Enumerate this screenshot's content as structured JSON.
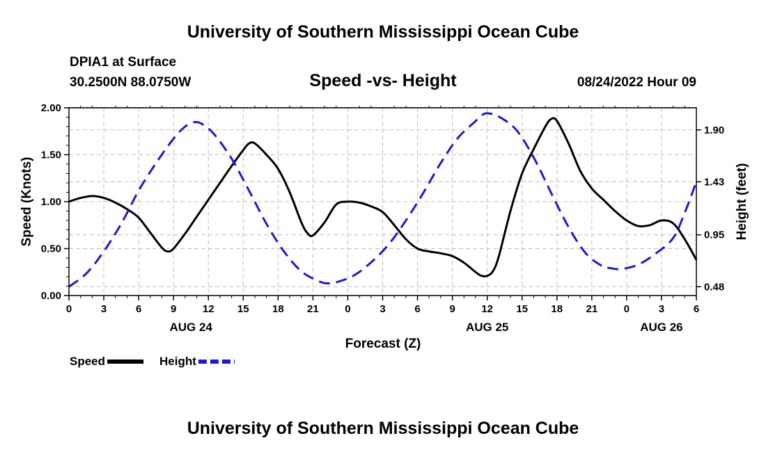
{
  "header": {
    "title": "University of Southern Mississippi Ocean Cube",
    "station": "DPIA1 at Surface",
    "coords": "30.2500N  88.0750W",
    "subtitle": "Speed -vs- Height",
    "timestamp": "08/24/2022 Hour 09"
  },
  "footer": {
    "title": "University of Southern Mississippi Ocean Cube"
  },
  "chart_data": {
    "type": "line",
    "title": "Speed -vs- Height",
    "xlabel": "Forecast (Z)",
    "ylabel_left": "Speed (Knots)",
    "ylabel_right": "Height (feet)",
    "x_range": [
      0,
      54
    ],
    "y_left_range": [
      0,
      2.0
    ],
    "y_right_range": [
      0.4,
      2.1
    ],
    "x_tick_values": [
      0,
      3,
      6,
      9,
      12,
      15,
      18,
      21,
      24,
      27,
      30,
      33,
      36,
      39,
      42,
      45,
      48,
      51,
      54
    ],
    "x_tick_labels": [
      "0",
      "3",
      "6",
      "9",
      "12",
      "15",
      "18",
      "21",
      "0",
      "3",
      "6",
      "9",
      "12",
      "15",
      "18",
      "21",
      "0",
      "3",
      "6"
    ],
    "date_labels": [
      {
        "label": "AUG 24",
        "x": 10.5
      },
      {
        "label": "AUG 25",
        "x": 36
      },
      {
        "label": "AUG 26",
        "x": 51
      }
    ],
    "y_left_ticks": [
      0.0,
      0.5,
      1.0,
      1.5,
      2.0
    ],
    "y_left_tick_labels": [
      "0.00",
      "0.50",
      "1.00",
      "1.50",
      "2.00"
    ],
    "y_right_ticks": [
      0.48,
      0.95,
      1.43,
      1.9
    ],
    "y_right_tick_labels": [
      "0.48",
      "0.95",
      "1.43",
      "1.90"
    ],
    "grid": true,
    "legend": [
      {
        "name": "Speed",
        "color": "#000000",
        "dashed": false
      },
      {
        "name": "Height",
        "color": "#1a1ad0",
        "dashed": true
      }
    ],
    "series": [
      {
        "name": "Speed",
        "axis": "left",
        "color": "#000000",
        "x": [
          0,
          1,
          2,
          3,
          4,
          5,
          6,
          7,
          8,
          8.5,
          9,
          10,
          11,
          12,
          13,
          14,
          15,
          15.5,
          16,
          17,
          18,
          19,
          20,
          20.5,
          21,
          22,
          23,
          24,
          25,
          26,
          27,
          28,
          29,
          30,
          31,
          32,
          33,
          34,
          35,
          35.5,
          36,
          36.5,
          37,
          38,
          39,
          40,
          41,
          41.5,
          42,
          43,
          44,
          45,
          46,
          47,
          48,
          49,
          50,
          51,
          52,
          53,
          54
        ],
        "y": [
          1.0,
          1.04,
          1.06,
          1.04,
          0.99,
          0.92,
          0.83,
          0.67,
          0.51,
          0.47,
          0.5,
          0.66,
          0.84,
          1.02,
          1.2,
          1.38,
          1.55,
          1.62,
          1.62,
          1.5,
          1.35,
          1.1,
          0.78,
          0.67,
          0.64,
          0.78,
          0.97,
          1.0,
          0.99,
          0.95,
          0.89,
          0.75,
          0.6,
          0.5,
          0.47,
          0.45,
          0.42,
          0.35,
          0.25,
          0.21,
          0.21,
          0.26,
          0.42,
          0.9,
          1.3,
          1.56,
          1.8,
          1.88,
          1.86,
          1.62,
          1.33,
          1.14,
          1.02,
          0.9,
          0.8,
          0.74,
          0.75,
          0.8,
          0.77,
          0.6,
          0.38
        ]
      },
      {
        "name": "Height",
        "axis": "right",
        "color": "#1a1ad0",
        "x": [
          0,
          1.5,
          3,
          4.5,
          6,
          7.5,
          9,
          10,
          10.8,
          11.5,
          12.5,
          14,
          15.5,
          17,
          18.5,
          20,
          21.5,
          22.3,
          23,
          24.5,
          26,
          27.5,
          29,
          30.5,
          32,
          33.5,
          35,
          36,
          35.5,
          37,
          38.5,
          40,
          41.5,
          43,
          44.5,
          46,
          46.5,
          47.5,
          49,
          50.5,
          52,
          53,
          54
        ],
        "y": [
          0.48,
          0.6,
          0.8,
          1.05,
          1.35,
          1.6,
          1.82,
          1.93,
          1.97,
          1.95,
          1.86,
          1.64,
          1.35,
          1.05,
          0.8,
          0.62,
          0.53,
          0.51,
          0.52,
          0.58,
          0.7,
          0.86,
          1.08,
          1.33,
          1.6,
          1.83,
          1.98,
          2.05,
          2.03,
          2.02,
          1.9,
          1.65,
          1.33,
          1.02,
          0.78,
          0.66,
          0.65,
          0.64,
          0.68,
          0.78,
          0.92,
          1.15,
          1.43
        ]
      }
    ]
  }
}
